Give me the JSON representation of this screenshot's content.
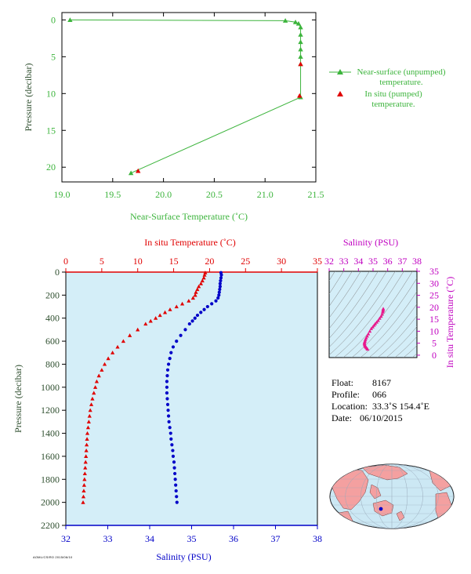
{
  "chart_data": [
    {
      "type": "line",
      "xlabel": "Near-Surface Temperature (˚C)",
      "ylabel": "Pressure (decibar)",
      "xlim": [
        19.0,
        21.5
      ],
      "ylim": [
        22,
        -1
      ],
      "xticks": [
        "19.0",
        "19.5",
        "20.0",
        "20.5",
        "21.0",
        "21.5"
      ],
      "yticks": [
        "0",
        "5",
        "10",
        "15",
        "20"
      ],
      "legend_position": "right",
      "series": [
        {
          "name": "Near-surface (unpumped) temperature.",
          "color": "#3cb43c",
          "marker": "triangle",
          "x": [
            19.08,
            21.2,
            21.3,
            21.33,
            21.35,
            21.35,
            21.35,
            21.35,
            21.35,
            21.35,
            21.35,
            19.68
          ],
          "y": [
            0.0,
            0.1,
            0.3,
            0.5,
            1.0,
            2.0,
            3.0,
            4.0,
            5.0,
            6.0,
            10.5,
            20.8
          ]
        },
        {
          "name": "In situ (pumped) temperature.",
          "color": "#e00000",
          "marker": "triangle",
          "x": [
            21.35,
            21.34,
            19.75
          ],
          "y": [
            6.0,
            10.3,
            20.5
          ]
        }
      ]
    },
    {
      "type": "scatter",
      "top_axis_label": "In situ Temperature (˚C)",
      "bottom_axis_label": "Salinity (PSU)",
      "ylabel": "Pressure (decibar)",
      "temperature_lim": [
        0,
        35
      ],
      "salinity_lim": [
        32,
        38
      ],
      "ylim": [
        2200,
        0
      ],
      "temperature_ticks": [
        "0",
        "5",
        "10",
        "15",
        "20",
        "25",
        "30",
        "35"
      ],
      "salinity_ticks": [
        "32",
        "33",
        "34",
        "35",
        "36",
        "37",
        "38"
      ],
      "pressure_ticks": [
        "0",
        "200",
        "400",
        "600",
        "800",
        "1000",
        "1200",
        "1400",
        "1600",
        "1800",
        "2000",
        "2200"
      ],
      "background": "#d4eef8",
      "temperature_color": "#e00000",
      "salinity_color": "#0000c8",
      "pressure": [
        5,
        25,
        50,
        75,
        100,
        125,
        150,
        175,
        200,
        225,
        250,
        275,
        300,
        325,
        350,
        375,
        400,
        425,
        450,
        500,
        550,
        600,
        650,
        700,
        750,
        800,
        850,
        900,
        950,
        1000,
        1050,
        1100,
        1150,
        1200,
        1250,
        1300,
        1350,
        1400,
        1450,
        1500,
        1550,
        1600,
        1650,
        1700,
        1750,
        1800,
        1850,
        1900,
        1950,
        2000
      ],
      "temperature": [
        19.4,
        19.3,
        19.2,
        19.0,
        18.8,
        18.5,
        18.3,
        18.1,
        18.0,
        17.7,
        17.1,
        16.2,
        15.4,
        14.5,
        13.8,
        13.1,
        12.5,
        11.8,
        11.1,
        10.0,
        8.9,
        8.0,
        7.2,
        6.5,
        5.9,
        5.4,
        5.0,
        4.6,
        4.3,
        4.1,
        3.9,
        3.7,
        3.55,
        3.4,
        3.3,
        3.2,
        3.1,
        3.0,
        2.95,
        2.9,
        2.85,
        2.8,
        2.75,
        2.7,
        2.65,
        2.6,
        2.55,
        2.5,
        2.45,
        2.4
      ],
      "salinity": [
        35.7,
        35.71,
        35.7,
        35.69,
        35.68,
        35.68,
        35.67,
        35.66,
        35.65,
        35.63,
        35.58,
        35.48,
        35.38,
        35.3,
        35.22,
        35.14,
        35.08,
        35.02,
        34.95,
        34.85,
        34.74,
        34.64,
        34.56,
        34.51,
        34.48,
        34.45,
        34.43,
        34.42,
        34.41,
        34.41,
        34.41,
        34.42,
        34.43,
        34.44,
        34.45,
        34.46,
        34.48,
        34.5,
        34.51,
        34.53,
        34.55,
        34.56,
        34.58,
        34.59,
        34.6,
        34.61,
        34.62,
        34.63,
        34.64,
        34.65
      ]
    },
    {
      "type": "scatter",
      "top_axis_label": "Salinity (PSU)",
      "right_axis_label": "In situ Temperature (˚C)",
      "xlim": [
        32,
        38
      ],
      "ylim": [
        -1,
        35
      ],
      "xticks": [
        "32",
        "33",
        "34",
        "35",
        "36",
        "37",
        "38"
      ],
      "yticks": [
        "0",
        "5",
        "10",
        "15",
        "20",
        "25",
        "30",
        "35"
      ],
      "color": "#e8188c",
      "x": [
        35.7,
        35.69,
        35.68,
        35.66,
        35.62,
        35.55,
        35.45,
        35.35,
        35.25,
        35.15,
        35.07,
        34.98,
        34.88,
        34.78,
        34.68,
        34.6,
        34.53,
        34.48,
        34.45,
        34.42,
        34.41,
        34.42,
        34.44,
        34.47,
        34.51,
        34.55,
        34.59,
        34.63
      ],
      "y": [
        19.4,
        19.0,
        18.5,
        18.0,
        17.1,
        16.2,
        15.4,
        14.5,
        13.8,
        13.1,
        12.5,
        11.8,
        11.1,
        10.0,
        8.9,
        8.0,
        7.2,
        6.5,
        5.9,
        5.4,
        5.0,
        4.6,
        4.1,
        3.7,
        3.4,
        3.1,
        2.8,
        2.5
      ]
    }
  ],
  "info": {
    "float_label": "Float:",
    "float_value": "8167",
    "profile_label": "Profile:",
    "profile_value": "066",
    "location_label": "Location:",
    "location_value": "33.3˚S  154.4˚E",
    "date_label": "Date:",
    "date_value": "06/10/2015"
  },
  "legend": {
    "item1": "Near-surface (unpumped) temperature.",
    "item2": "In situ (pumped) temperature."
  },
  "map": {
    "ocean_color": "#cce8f4",
    "land_color": "#f4a0a0"
  },
  "credit": "AOML/CSIRO  2015/06/10"
}
